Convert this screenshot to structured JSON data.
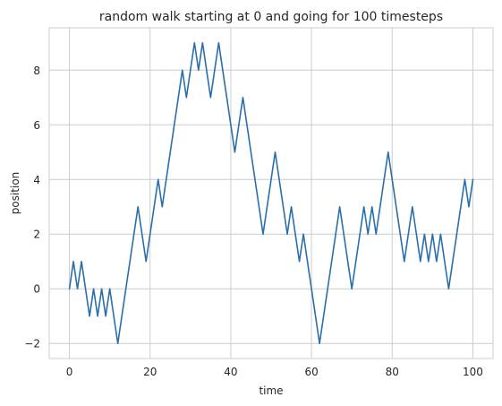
{
  "chart_data": {
    "type": "line",
    "title": "random walk starting at 0 and going for 100 timesteps",
    "xlabel": "time",
    "ylabel": "position",
    "xlim": [
      -5,
      105
    ],
    "ylim": [
      -2.55,
      9.55
    ],
    "xticks": [
      0,
      20,
      40,
      60,
      80,
      100
    ],
    "yticks": [
      -2,
      0,
      2,
      4,
      6,
      8
    ],
    "ytick_labels": [
      "−2",
      "0",
      "2",
      "4",
      "6",
      "8"
    ],
    "grid": true,
    "line_color": "#2a6fab",
    "grid_color": "#cccccc",
    "series": [
      {
        "x": [
          0,
          1,
          2,
          3,
          4,
          5,
          6,
          7,
          8,
          9,
          10,
          11,
          12,
          13,
          14,
          15,
          16,
          17,
          18,
          19,
          20,
          21,
          22,
          23,
          24,
          25,
          26,
          27,
          28,
          29,
          30,
          31,
          32,
          33,
          34,
          35,
          36,
          37,
          38,
          39,
          40,
          41,
          42,
          43,
          44,
          45,
          46,
          47,
          48,
          49,
          50,
          51,
          52,
          53,
          54,
          55,
          56,
          57,
          58,
          59,
          60,
          61,
          62,
          63,
          64,
          65,
          66,
          67,
          68,
          69,
          70,
          71,
          72,
          73,
          74,
          75,
          76,
          77,
          78,
          79,
          80,
          81,
          82,
          83,
          84,
          85,
          86,
          87,
          88,
          89,
          90,
          91,
          92,
          93,
          94,
          95,
          96,
          97,
          98,
          99,
          100
        ],
        "values": [
          0,
          1,
          0,
          1,
          0,
          -1,
          0,
          -1,
          0,
          -1,
          0,
          -1,
          -2,
          -1,
          0,
          1,
          2,
          3,
          2,
          1,
          2,
          3,
          4,
          3,
          4,
          5,
          6,
          7,
          8,
          7,
          8,
          9,
          8,
          9,
          8,
          7,
          8,
          9,
          8,
          7,
          6,
          5,
          6,
          7,
          6,
          5,
          4,
          3,
          2,
          3,
          4,
          5,
          4,
          3,
          2,
          3,
          2,
          1,
          2,
          1,
          0,
          -1,
          -2,
          -1,
          0,
          1,
          2,
          3,
          2,
          1,
          0,
          1,
          2,
          3,
          2,
          3,
          2,
          3,
          4,
          5,
          4,
          3,
          2,
          1,
          2,
          3,
          2,
          1,
          2,
          1,
          2,
          1,
          2,
          1,
          0,
          1,
          2,
          3,
          4,
          3,
          4
        ]
      }
    ]
  }
}
